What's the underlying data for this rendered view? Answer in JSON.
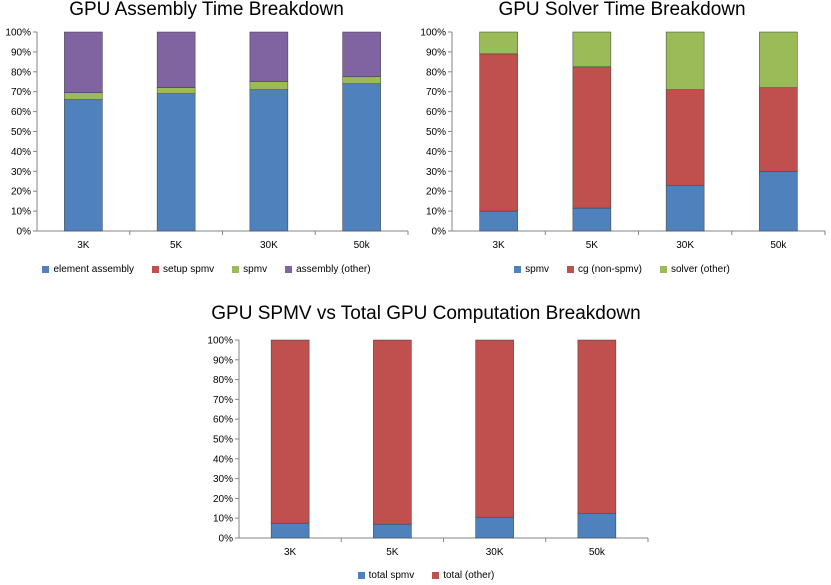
{
  "chart_data": [
    {
      "type": "bar",
      "stacked": true,
      "title": "GPU Assembly Time Breakdown",
      "xlabel": "",
      "ylabel": "",
      "ylim": [
        0,
        100
      ],
      "yticks": [
        "0%",
        "10%",
        "20%",
        "30%",
        "40%",
        "50%",
        "60%",
        "70%",
        "80%",
        "90%",
        "100%"
      ],
      "grid": false,
      "legend_position": "bottom",
      "categories": [
        "3K",
        "5K",
        "30K",
        "50k"
      ],
      "series": [
        {
          "name": "element assembly",
          "color": "#4F81BD",
          "values": [
            66,
            69,
            71,
            74
          ]
        },
        {
          "name": "setup spmv",
          "color": "#C0504D",
          "values": [
            0,
            0,
            0,
            0
          ]
        },
        {
          "name": "spmv",
          "color": "#9BBB59",
          "values": [
            3.5,
            3,
            4,
            3.5
          ]
        },
        {
          "name": "assembly (other)",
          "color": "#8064A2",
          "values": [
            30.5,
            28,
            25,
            22.5
          ]
        }
      ]
    },
    {
      "type": "bar",
      "stacked": true,
      "title": "GPU Solver Time Breakdown",
      "xlabel": "",
      "ylabel": "",
      "ylim": [
        0,
        100
      ],
      "yticks": [
        "0%",
        "10%",
        "20%",
        "30%",
        "40%",
        "50%",
        "60%",
        "70%",
        "80%",
        "90%",
        "100%"
      ],
      "grid": false,
      "legend_position": "bottom",
      "categories": [
        "3K",
        "5K",
        "30K",
        "50k"
      ],
      "series": [
        {
          "name": "spmv",
          "color": "#4F81BD",
          "values": [
            10,
            11.5,
            23,
            30
          ]
        },
        {
          "name": "cg (non-spmv)",
          "color": "#C0504D",
          "values": [
            79,
            71,
            48,
            42
          ]
        },
        {
          "name": "solver (other)",
          "color": "#9BBB59",
          "values": [
            11,
            17.5,
            29,
            28
          ]
        }
      ]
    },
    {
      "type": "bar",
      "stacked": true,
      "title": "GPU SPMV vs Total GPU Computation Breakdown",
      "xlabel": "",
      "ylabel": "",
      "ylim": [
        0,
        100
      ],
      "yticks": [
        "0%",
        "10%",
        "20%",
        "30%",
        "40%",
        "50%",
        "60%",
        "70%",
        "80%",
        "90%",
        "100%"
      ],
      "grid": false,
      "legend_position": "bottom",
      "categories": [
        "3K",
        "5K",
        "30K",
        "50k"
      ],
      "series": [
        {
          "name": "total spmv",
          "color": "#4F81BD",
          "values": [
            7.5,
            7,
            10.5,
            12.5
          ]
        },
        {
          "name": "total (other)",
          "color": "#C0504D",
          "values": [
            92.5,
            93,
            89.5,
            87.5
          ]
        }
      ]
    }
  ]
}
